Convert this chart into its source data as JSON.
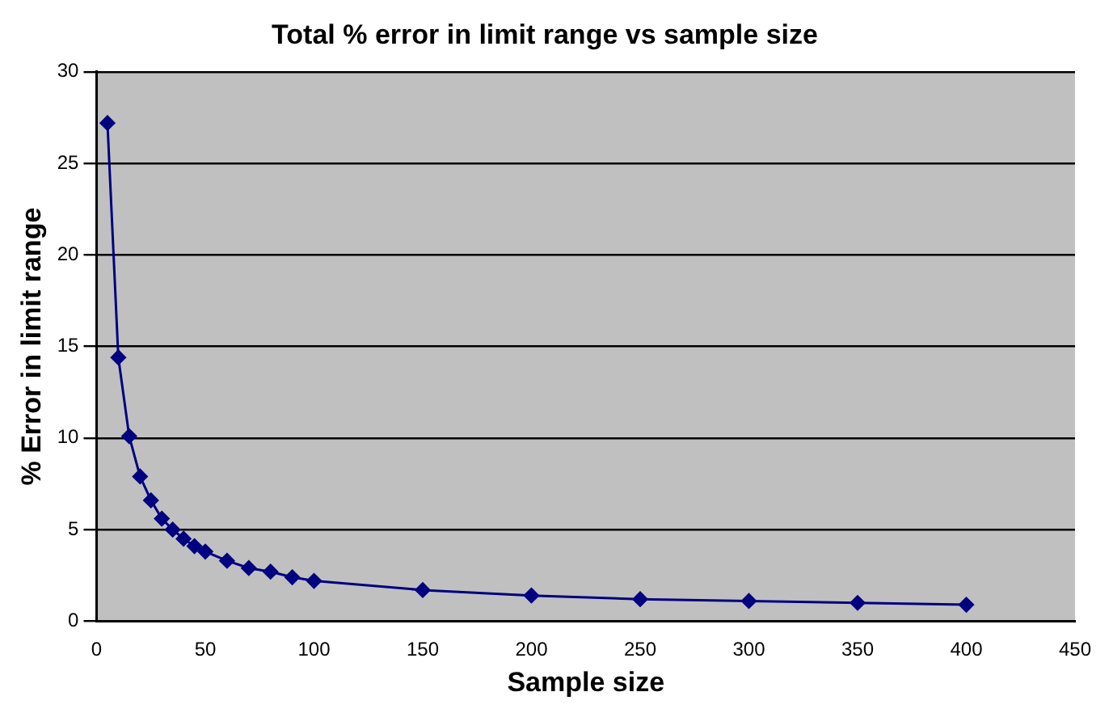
{
  "chart_data": {
    "type": "line",
    "title": "Total % error in limit range vs sample size",
    "xlabel": "Sample size",
    "ylabel": "% Error in limit range",
    "x": [
      5,
      10,
      15,
      20,
      25,
      30,
      35,
      40,
      45,
      50,
      60,
      70,
      80,
      90,
      100,
      150,
      200,
      250,
      300,
      350,
      400
    ],
    "series": [
      {
        "color": "#000080",
        "values": [
          27.2,
          14.4,
          10.1,
          7.9,
          6.6,
          5.6,
          5.0,
          4.5,
          4.1,
          3.8,
          3.3,
          2.9,
          2.7,
          2.4,
          2.2,
          1.7,
          1.4,
          1.2,
          1.1,
          1.0,
          0.9
        ]
      }
    ],
    "xlim": [
      0,
      450
    ],
    "xticks": [
      0,
      50,
      100,
      150,
      200,
      250,
      300,
      350,
      400,
      450
    ],
    "ylim": [
      0,
      30
    ],
    "yticks": [
      0,
      5,
      10,
      15,
      20,
      25,
      30
    ],
    "grid": "y",
    "legend": false,
    "marker": "diamond",
    "line_style": "solid"
  }
}
